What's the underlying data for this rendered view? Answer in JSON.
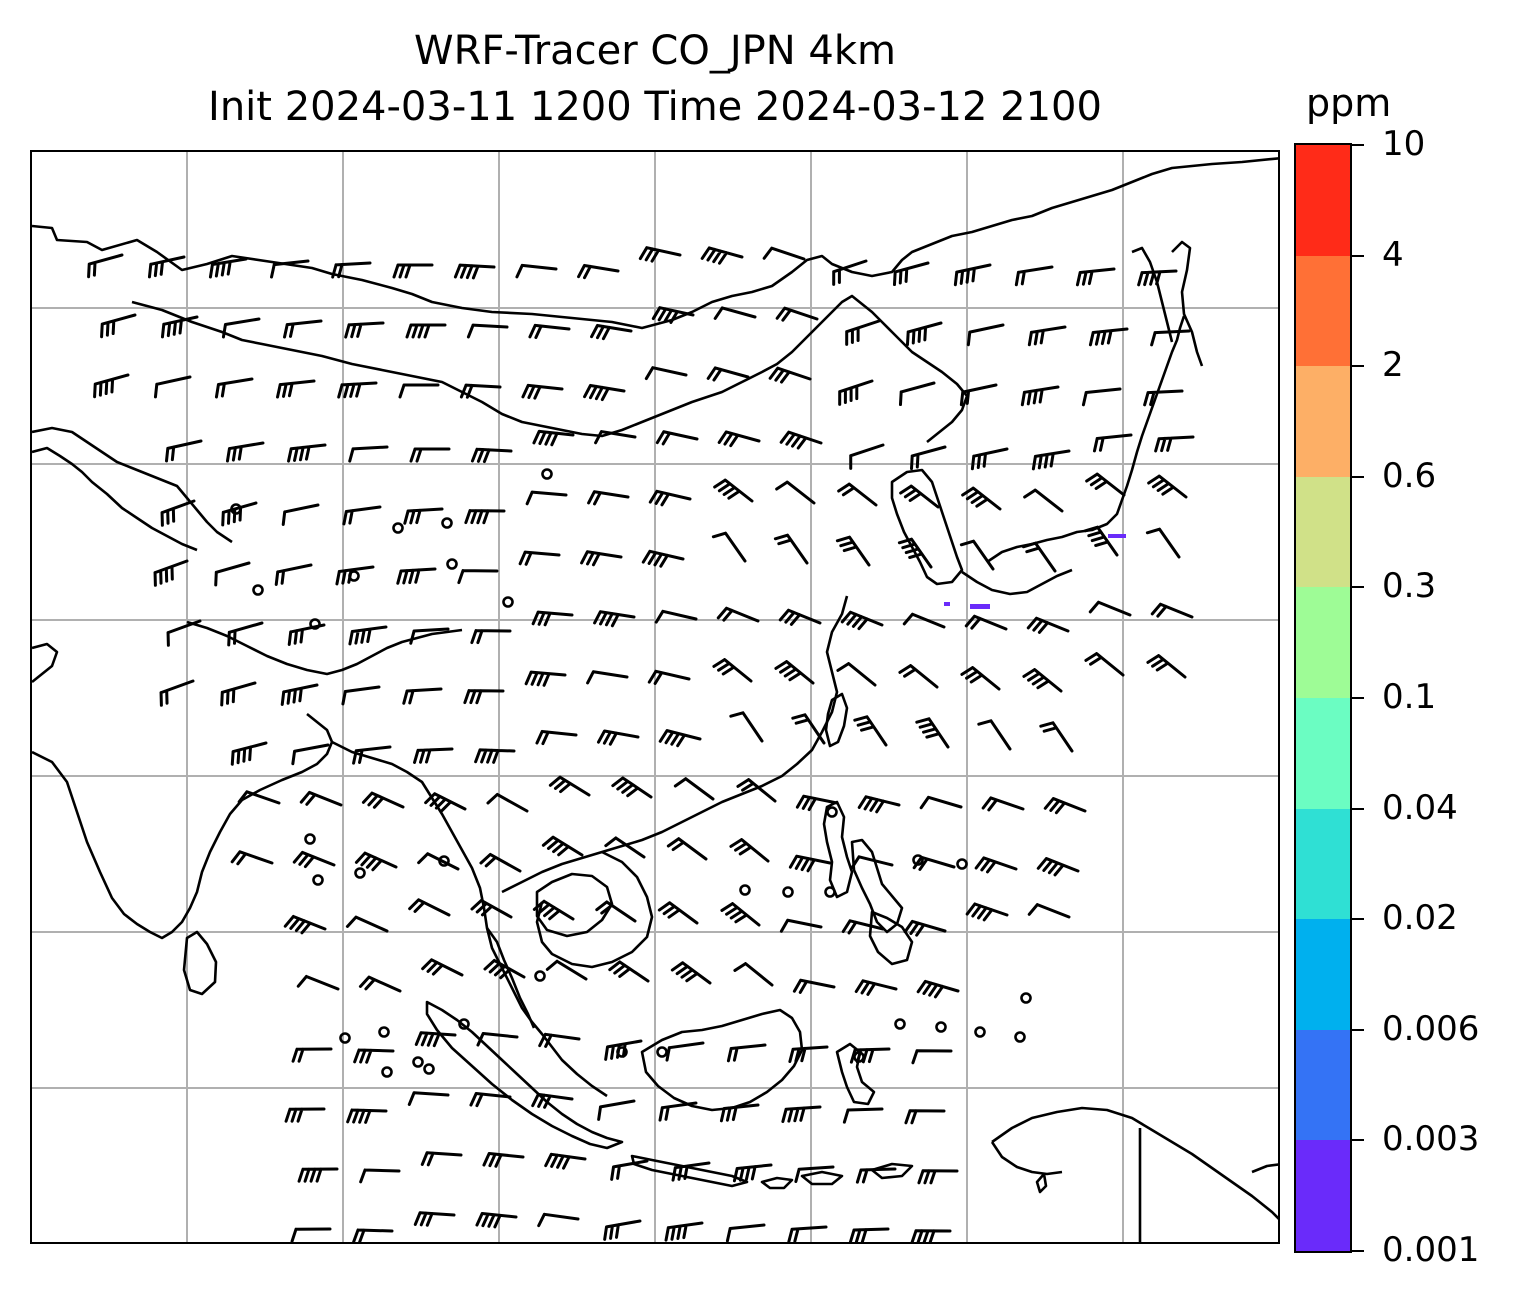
{
  "title": {
    "line1": "WRF-Tracer CO_JPN 4km",
    "line2": "Init 2024-03-11 1200 Time 2024-03-12 2100"
  },
  "colorbar": {
    "unit": "ppm",
    "levels": [
      "0.001",
      "0.003",
      "0.006",
      "0.02",
      "0.04",
      "0.1",
      "0.3",
      "0.6",
      "2",
      "4",
      "10"
    ],
    "colors": [
      "#6a2bfa",
      "#3473f5",
      "#00b0ee",
      "#2fe0d4",
      "#6bfdc2",
      "#9efc96",
      "#d0e188",
      "#fdaf66",
      "#ff7036",
      "#ff2b18"
    ]
  },
  "map": {
    "gridlines": true,
    "coastline_color": "#000000",
    "grid_color": "#b0b0b0",
    "tracer_patch_color": "#6a2bfa",
    "icons": [
      "coastline-outline",
      "wind-barb",
      "calm-wind-circle"
    ]
  }
}
